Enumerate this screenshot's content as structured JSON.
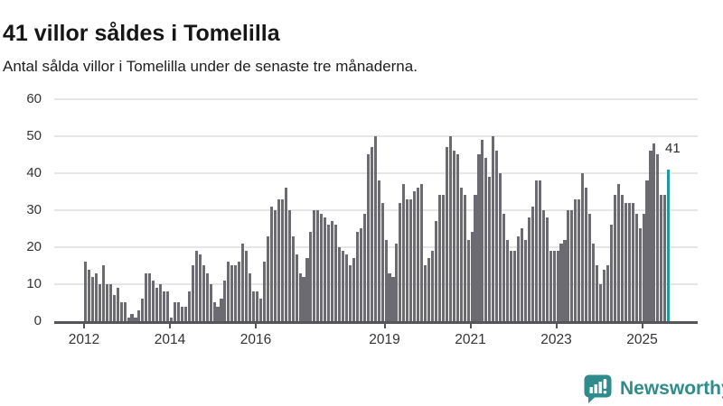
{
  "header": {
    "title": "41 villor såldes i Tomelilla",
    "subtitle": "Antal sålda villor i Tomelilla under de senaste tre månaderna."
  },
  "chart_data": {
    "type": "bar",
    "title": "41 villor såldes i Tomelilla",
    "subtitle": "Antal sålda villor i Tomelilla under de senaste tre månaderna.",
    "x_frequency": "monthly",
    "x_start": "2012-01",
    "x_end": "2025-08",
    "ylim": [
      0,
      60
    ],
    "yticks": [
      0,
      10,
      20,
      30,
      40,
      50,
      60
    ],
    "grid": true,
    "xticks": [
      {
        "label": "2012",
        "month_index": 0
      },
      {
        "label": "2014",
        "month_index": 24
      },
      {
        "label": "2016",
        "month_index": 48
      },
      {
        "label": "2019",
        "month_index": 84
      },
      {
        "label": "2021",
        "month_index": 108
      },
      {
        "label": "2023",
        "month_index": 132
      },
      {
        "label": "2025",
        "month_index": 156
      }
    ],
    "values": [
      16,
      14,
      12,
      13,
      10,
      15,
      10,
      10,
      7,
      9,
      5,
      5,
      1,
      2,
      1,
      3,
      6,
      13,
      13,
      11,
      9,
      10,
      8,
      8,
      1,
      5,
      5,
      4,
      4,
      8,
      15,
      19,
      18,
      15,
      13,
      10,
      5,
      4,
      6,
      11,
      16,
      15,
      15,
      16,
      21,
      19,
      13,
      8,
      8,
      6,
      16,
      23,
      31,
      30,
      33,
      33,
      36,
      30,
      23,
      18,
      13,
      12,
      17,
      24,
      30,
      30,
      29,
      28,
      26,
      27,
      26,
      20,
      19,
      18,
      15,
      17,
      24,
      25,
      29,
      45,
      47,
      50,
      38,
      32,
      22,
      13,
      12,
      21,
      32,
      37,
      33,
      33,
      35,
      36,
      37,
      15,
      17,
      19,
      27,
      34,
      34,
      47,
      50,
      46,
      45,
      36,
      34,
      22,
      24,
      34,
      45,
      49,
      44,
      39,
      50,
      46,
      40,
      29,
      22,
      19,
      19,
      23,
      25,
      22,
      28,
      31,
      38,
      38,
      30,
      28,
      19,
      19,
      19,
      21,
      22,
      30,
      30,
      33,
      33,
      40,
      36,
      29,
      21,
      15,
      10,
      14,
      15,
      26,
      34,
      37,
      34,
      32,
      32,
      32,
      29,
      25,
      29,
      38,
      46,
      48,
      45,
      34,
      34,
      41
    ],
    "highlighted_last_value": 41,
    "colors": {
      "bar": "#6b6b71",
      "highlight": "#219a9a",
      "grid": "#e6e6e6",
      "axis": "#55565a",
      "tick_text": "#333333"
    }
  },
  "annotation": {
    "label": "41"
  },
  "branding": {
    "name": "Newsworthy",
    "color": "#2e8c8c"
  }
}
